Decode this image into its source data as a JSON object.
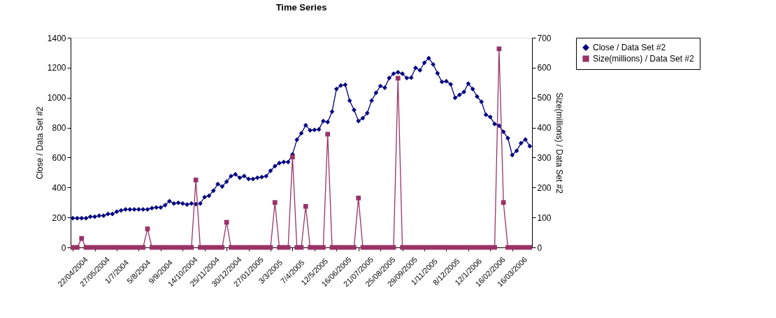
{
  "chart_data": {
    "type": "line",
    "title": "Time Series",
    "ylabel": "Close / Data Set #2",
    "y2label": "Size(millions) / Data Set #2",
    "categories": [
      "22/04/2004",
      null,
      null,
      null,
      null,
      "27/05/2004",
      null,
      null,
      null,
      null,
      "1/7/2004",
      null,
      null,
      null,
      null,
      "5/8/2004",
      null,
      null,
      null,
      null,
      "9/9/2004",
      null,
      null,
      null,
      null,
      "14/10/2004",
      null,
      null,
      null,
      null,
      "25/11/2004",
      null,
      null,
      null,
      null,
      "30/12/2004",
      null,
      null,
      null,
      null,
      "27/01/2005",
      null,
      null,
      null,
      null,
      "3/3/2005",
      null,
      null,
      null,
      null,
      "7/4/2005",
      null,
      null,
      null,
      null,
      "12/5/2005",
      null,
      null,
      null,
      null,
      "16/06/2005",
      null,
      null,
      null,
      null,
      "21/07/2005",
      null,
      null,
      null,
      null,
      "25/08/2005",
      null,
      null,
      null,
      null,
      "29/09/2005",
      null,
      null,
      null,
      null,
      "1/11/2005",
      null,
      null,
      null,
      null,
      "8/12/2005",
      null,
      null,
      null,
      null,
      "12/1/2006",
      null,
      null,
      null,
      null,
      "16/02/2006",
      null,
      null,
      null,
      null,
      "16/03/2006",
      null,
      null,
      null,
      null
    ],
    "ylim": [
      0,
      1400
    ],
    "yticks": [
      0,
      200,
      400,
      600,
      800,
      1000,
      1200,
      1400
    ],
    "y2lim": [
      0,
      700
    ],
    "y2ticks": [
      0,
      100,
      200,
      300,
      400,
      500,
      600,
      700
    ],
    "grid": false,
    "legend": "right",
    "series": [
      {
        "name": "Close / Data Set #2",
        "color": "#000080",
        "marker": "diamond",
        "values": [
          195,
          195,
          195,
          195,
          205,
          205,
          212,
          212,
          223,
          223,
          239,
          247,
          254,
          254,
          254,
          254,
          254,
          254,
          262,
          267,
          267,
          282,
          309,
          293,
          298,
          293,
          286,
          293,
          289,
          293,
          336,
          345,
          379,
          423,
          407,
          439,
          476,
          488,
          465,
          477,
          457,
          457,
          465,
          470,
          476,
          512,
          543,
          563,
          570,
          570,
          621,
          719,
          762,
          816,
          782,
          785,
          788,
          844,
          837,
          907,
          1058,
          1081,
          1086,
          980,
          918,
          844,
          863,
          897,
          980,
          1032,
          1078,
          1066,
          1131,
          1160,
          1170,
          1160,
          1131,
          1133,
          1199,
          1183,
          1233,
          1264,
          1222,
          1163,
          1105,
          1110,
          1089,
          999,
          1019,
          1038,
          1094,
          1058,
          1007,
          972,
          886,
          871,
          824,
          813,
          772,
          730,
          617,
          645,
          696,
          720,
          676
        ]
      },
      {
        "name": "Size(millions) / Data Set #2",
        "color": "#993366",
        "marker": "square",
        "axis": "y2",
        "values": [
          0,
          0,
          30,
          0,
          0,
          0,
          0,
          0,
          0,
          0,
          0,
          0,
          0,
          0,
          0,
          0,
          0,
          62,
          0,
          0,
          0,
          0,
          0,
          0,
          0,
          0,
          0,
          0,
          225,
          0,
          0,
          0,
          0,
          0,
          0,
          84,
          0,
          0,
          0,
          0,
          0,
          0,
          0,
          0,
          0,
          0,
          150,
          0,
          0,
          0,
          302,
          0,
          0,
          137,
          0,
          0,
          0,
          0,
          378,
          0,
          0,
          0,
          0,
          0,
          0,
          165,
          0,
          0,
          0,
          0,
          0,
          0,
          0,
          0,
          565,
          0,
          0,
          0,
          0,
          0,
          0,
          0,
          0,
          0,
          0,
          0,
          0,
          0,
          0,
          0,
          0,
          0,
          0,
          0,
          0,
          0,
          0,
          663,
          150,
          0,
          0,
          0,
          0,
          0,
          0
        ]
      }
    ]
  }
}
